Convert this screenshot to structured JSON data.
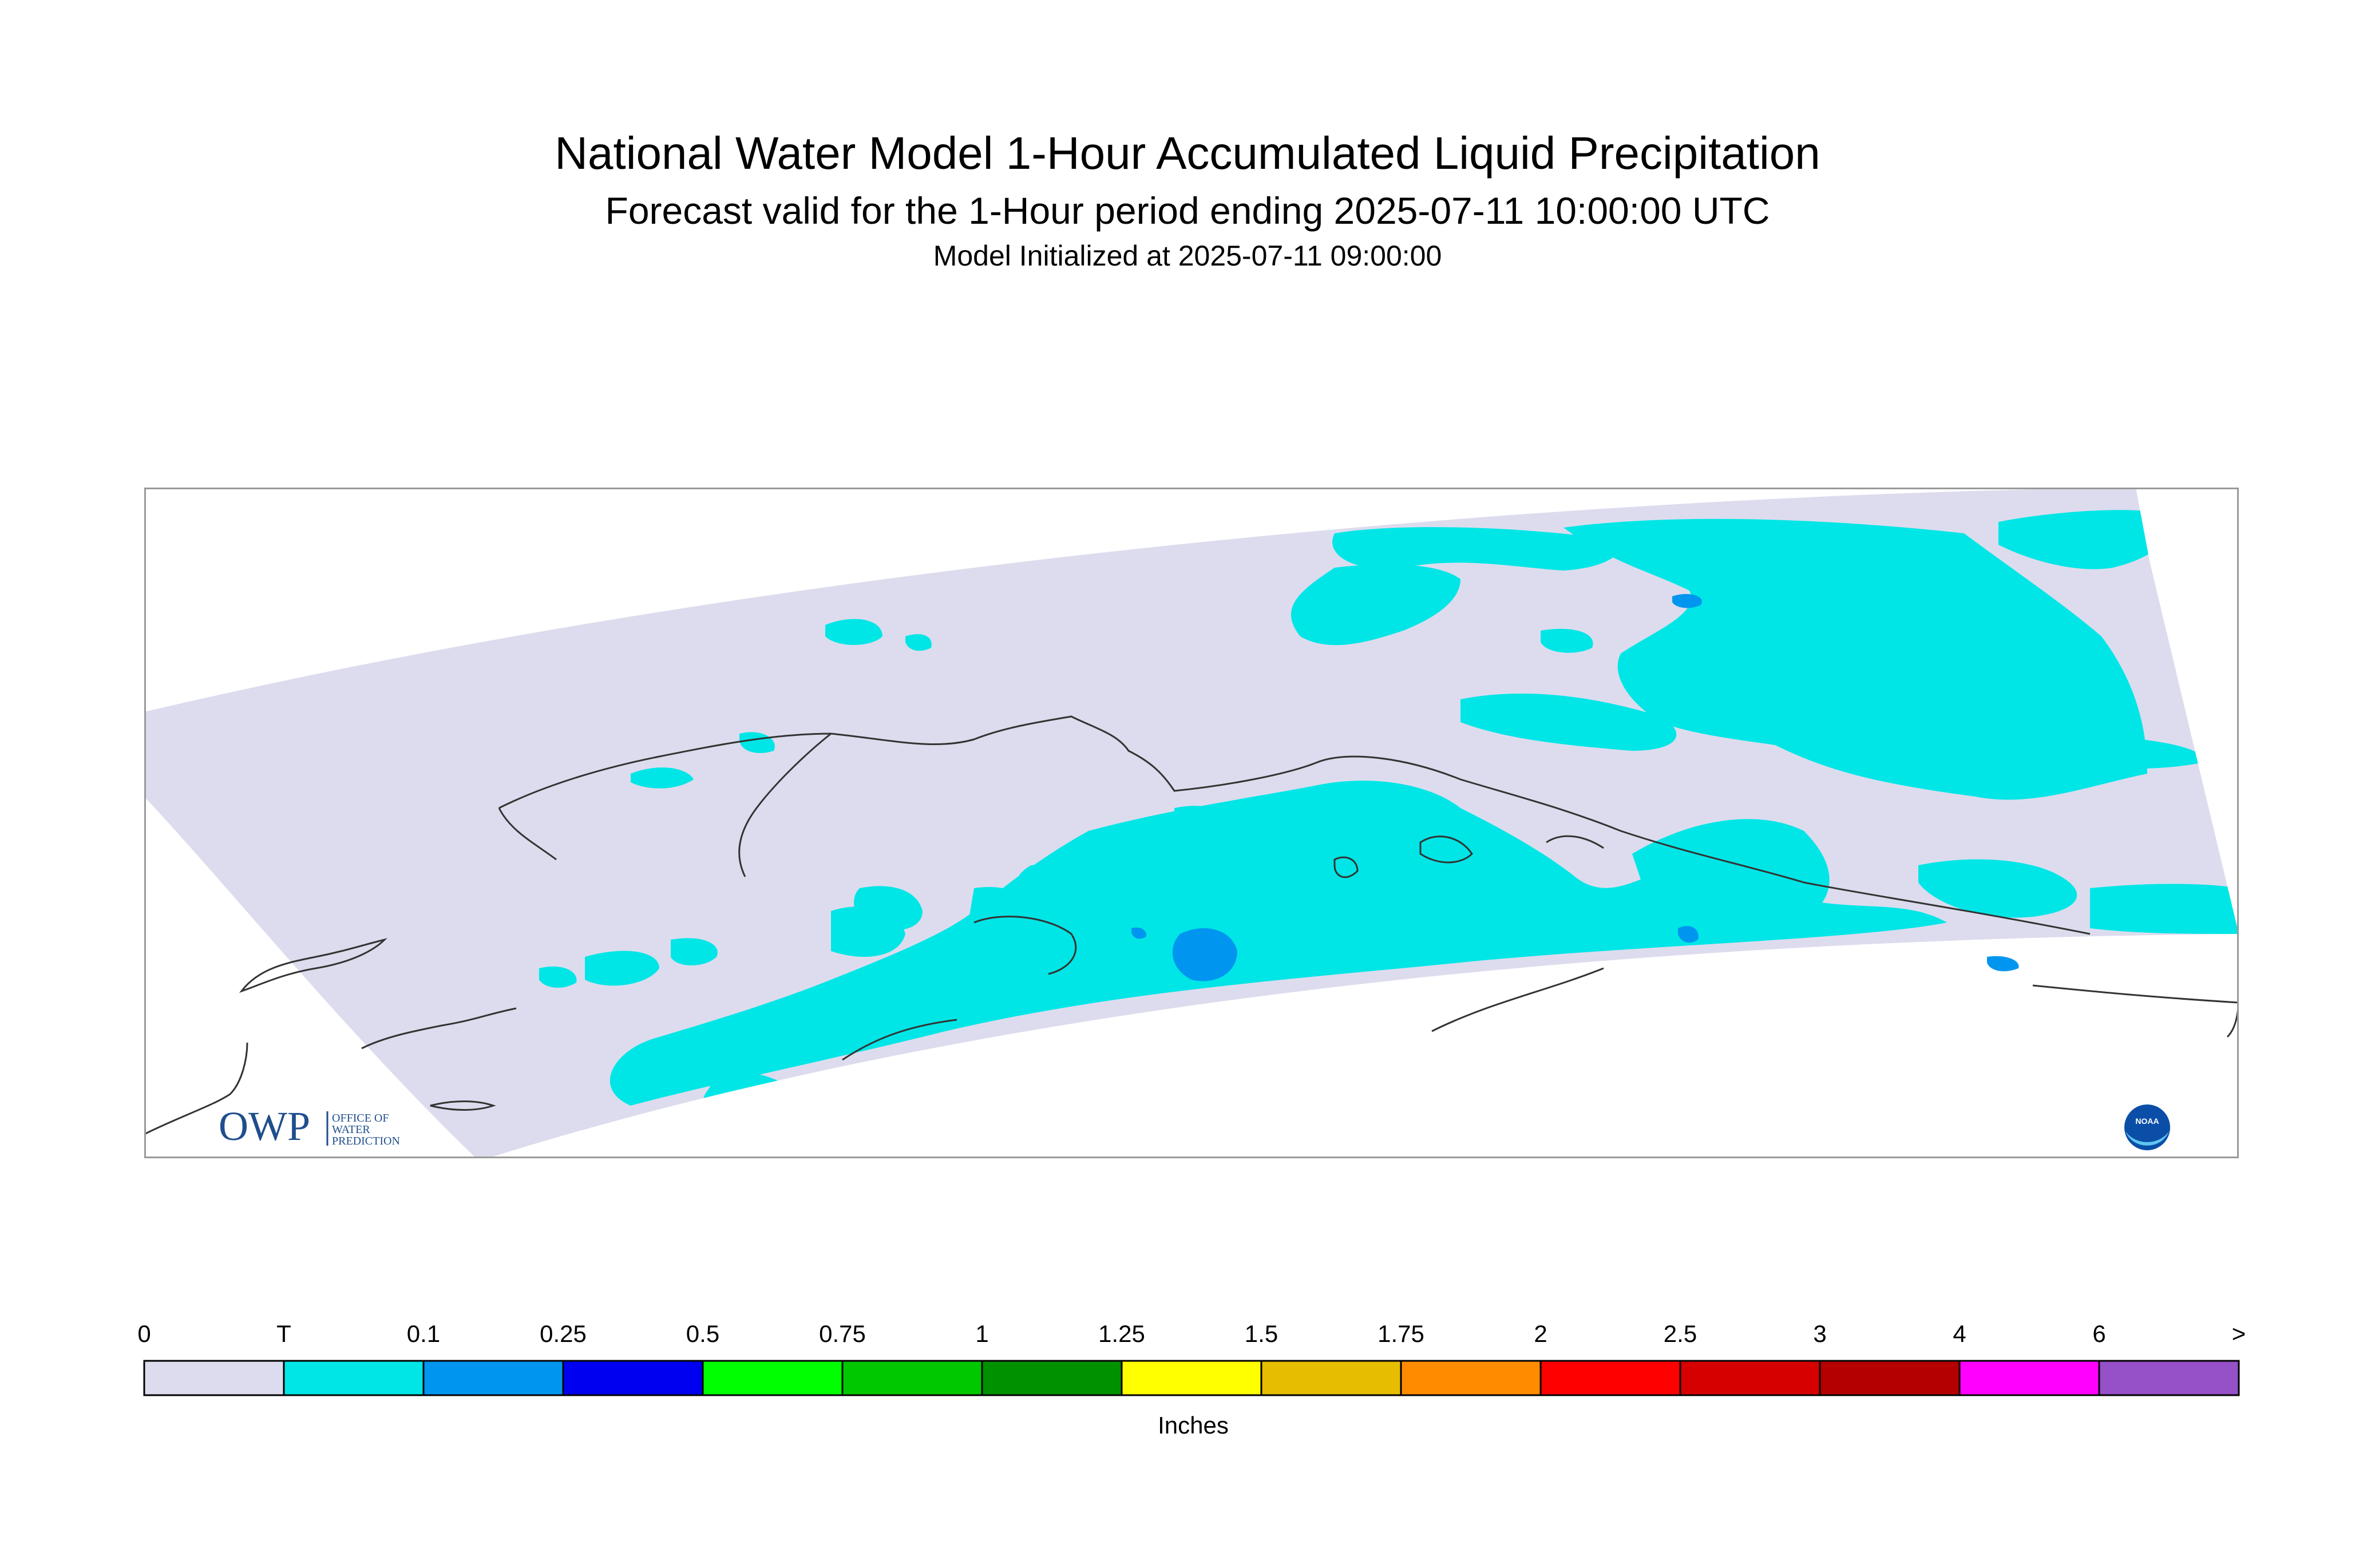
{
  "header": {
    "title": "National Water Model 1-Hour Accumulated Liquid Precipitation",
    "subtitle": "Forecast valid for the 1-Hour period ending 2025-07-11 10:00:00 UTC",
    "init": "Model Initialized at 2025-07-11 09:00:00"
  },
  "logos": {
    "owp_mark": "OWP",
    "owp_line1": "OFFICE OF",
    "owp_line2": "WATER",
    "owp_line3": "PREDICTION",
    "noaa_mark": "NOAA"
  },
  "legend": {
    "unit_label": "Inches",
    "ticks": [
      "0",
      "T",
      "0.1",
      "0.25",
      "0.5",
      "0.75",
      "1",
      "1.25",
      "1.5",
      "1.75",
      "2",
      "2.5",
      "3",
      "4",
      "6",
      ">"
    ],
    "colors": [
      "#dcdcee",
      "#00e6e6",
      "#0096f0",
      "#0000f0",
      "#00ff00",
      "#00c800",
      "#009100",
      "#ffff00",
      "#e6bd00",
      "#ff8c00",
      "#ff0000",
      "#d70000",
      "#b40000",
      "#ff00ff",
      "#9650c8"
    ]
  },
  "map_style": {
    "domain_fill": "#dcdcee",
    "trace_fill": "#00e6e6",
    "light_fill": "#0096f0",
    "coast_stroke": "#333333"
  }
}
